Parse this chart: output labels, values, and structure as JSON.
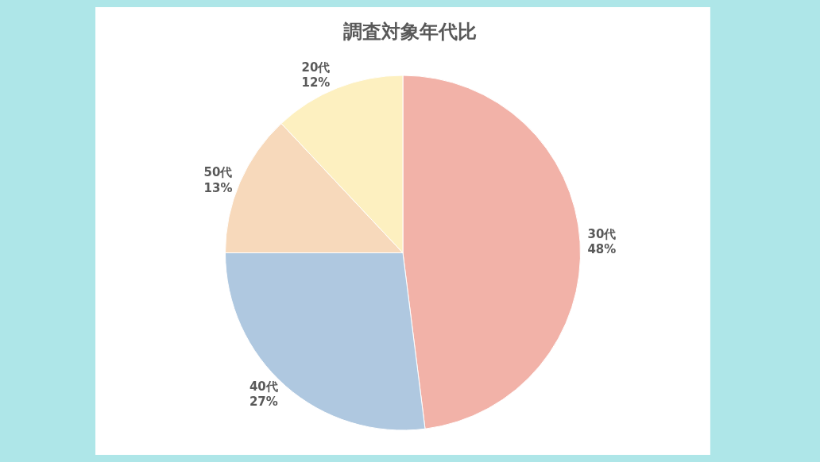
{
  "chart_data": {
    "type": "pie",
    "title": "調査対象年代比",
    "categories": [
      "30代",
      "40代",
      "50代",
      "20代"
    ],
    "values": [
      48,
      27,
      13,
      12
    ],
    "value_labels": [
      "48%",
      "27%",
      "13%",
      "12%"
    ],
    "colors": [
      "#f2b2a8",
      "#afc8e0",
      "#f7d9bb",
      "#fdf0c0"
    ],
    "legend": false
  }
}
